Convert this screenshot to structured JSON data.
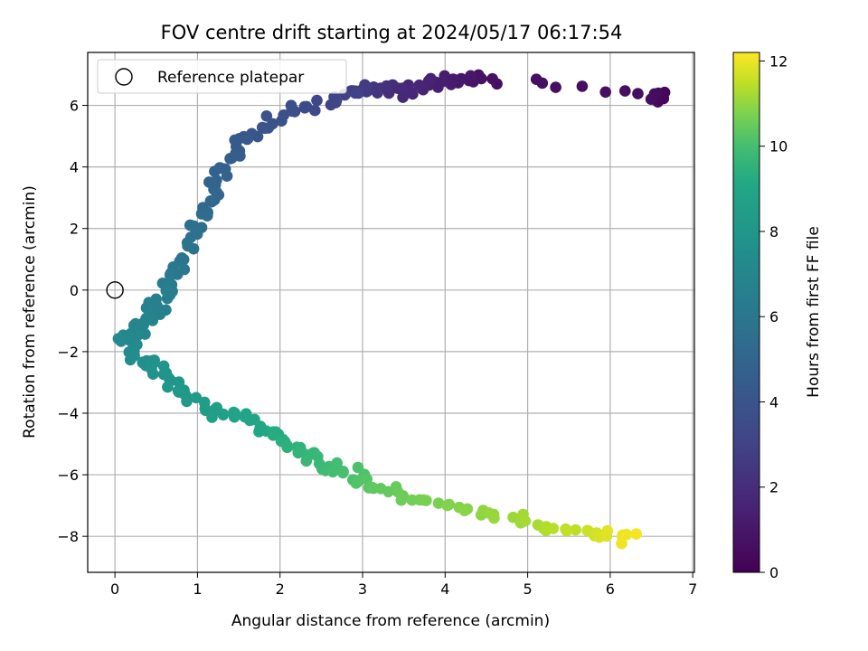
{
  "chart_data": {
    "type": "scatter",
    "title": "FOV centre drift starting at 2024/05/17 06:17:54",
    "xlabel": "Angular distance from reference (arcmin)",
    "ylabel": "Rotation from reference (arcmin)",
    "xlim": [
      -0.33,
      7.02
    ],
    "ylim": [
      -9.17,
      7.72
    ],
    "xticks": [
      0,
      1,
      2,
      3,
      4,
      5,
      6,
      7
    ],
    "yticks": [
      -8,
      -6,
      -4,
      -2,
      0,
      2,
      4,
      6
    ],
    "grid": true,
    "legend": {
      "placement": "top-left",
      "entries": [
        "Reference platepar"
      ]
    },
    "reference_point": {
      "name": "Reference platepar",
      "x": 0,
      "y": 0
    },
    "colorbar": {
      "label": "Hours from first FF file",
      "range": [
        0,
        12.2
      ],
      "ticks": [
        0,
        2,
        4,
        6,
        8,
        10,
        12
      ],
      "colormap": "viridis"
    },
    "anchors": [
      {
        "t": 0.0,
        "x": 6.6,
        "y": 6.2
      },
      {
        "t": 0.6,
        "x": 6.55,
        "y": 6.3
      },
      {
        "t": 0.7,
        "x": 4.5,
        "y": 6.9
      },
      {
        "t": 1.2,
        "x": 4.0,
        "y": 6.8
      },
      {
        "t": 1.6,
        "x": 3.7,
        "y": 6.6
      },
      {
        "t": 2.0,
        "x": 3.3,
        "y": 6.4
      },
      {
        "t": 2.6,
        "x": 3.0,
        "y": 6.6
      },
      {
        "t": 3.0,
        "x": 2.8,
        "y": 6.2
      },
      {
        "t": 3.5,
        "x": 2.2,
        "y": 6.0
      },
      {
        "t": 4.0,
        "x": 1.8,
        "y": 5.3
      },
      {
        "t": 4.3,
        "x": 1.5,
        "y": 4.8
      },
      {
        "t": 4.7,
        "x": 1.3,
        "y": 3.9
      },
      {
        "t": 5.1,
        "x": 1.2,
        "y": 3.0
      },
      {
        "t": 5.5,
        "x": 1.0,
        "y": 2.2
      },
      {
        "t": 5.9,
        "x": 0.85,
        "y": 1.2
      },
      {
        "t": 6.3,
        "x": 0.7,
        "y": 0.2
      },
      {
        "t": 6.6,
        "x": 0.55,
        "y": -0.5
      },
      {
        "t": 6.9,
        "x": 0.3,
        "y": -1.1
      },
      {
        "t": 7.2,
        "x": 0.12,
        "y": -1.7
      },
      {
        "t": 7.5,
        "x": 0.3,
        "y": -2.3
      },
      {
        "t": 7.8,
        "x": 0.5,
        "y": -2.5
      },
      {
        "t": 8.1,
        "x": 0.8,
        "y": -3.3
      },
      {
        "t": 8.4,
        "x": 1.1,
        "y": -3.9
      },
      {
        "t": 8.8,
        "x": 1.5,
        "y": -4.1
      },
      {
        "t": 9.2,
        "x": 1.9,
        "y": -4.6
      },
      {
        "t": 9.5,
        "x": 2.2,
        "y": -5.2
      },
      {
        "t": 9.8,
        "x": 2.5,
        "y": -5.6
      },
      {
        "t": 10.1,
        "x": 2.9,
        "y": -6.0
      },
      {
        "t": 10.4,
        "x": 3.2,
        "y": -6.5
      },
      {
        "t": 10.7,
        "x": 3.8,
        "y": -6.9
      },
      {
        "t": 11.0,
        "x": 4.5,
        "y": -7.3
      },
      {
        "t": 11.3,
        "x": 5.2,
        "y": -7.7
      },
      {
        "t": 11.7,
        "x": 5.8,
        "y": -7.9
      },
      {
        "t": 12.1,
        "x": 6.3,
        "y": -8.1
      }
    ],
    "n_points": 300
  }
}
